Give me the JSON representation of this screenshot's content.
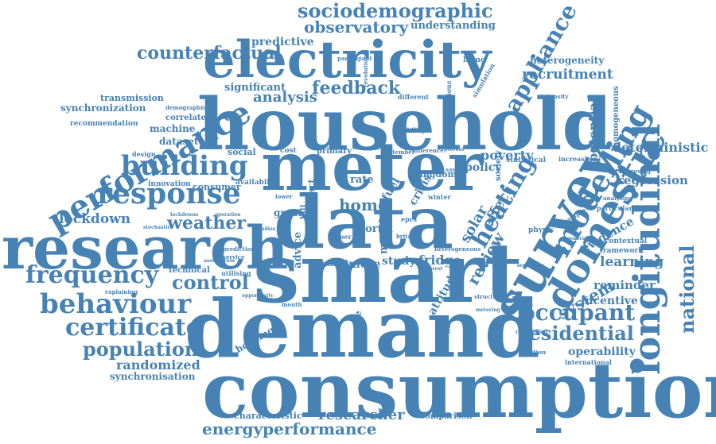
{
  "word_color": "#4682b4",
  "words": [
    "consumption",
    "demand",
    "smart",
    "data",
    "household",
    "research",
    "meter",
    "electricity",
    "survey",
    "domestic",
    "longitudinal",
    "modelling",
    "performance",
    "response",
    "building",
    "behaviour",
    "frequency",
    "certificate",
    "population",
    "control",
    "sociodemographic",
    "appliance",
    "occupant",
    "residential",
    "temperature",
    "feedback",
    "heating",
    "observatory",
    "energyperformance",
    "researcher",
    "randomized",
    "synchronisation",
    "weather",
    "lockdown",
    "counterfactual",
    "recruitment",
    "heterogeneity",
    "deterministic",
    "regression",
    "learning",
    "reminder",
    "incentive",
    "operability",
    "analysis",
    "national",
    "significant",
    "predictive",
    "understanding",
    "home",
    "solar",
    "fridge",
    "study",
    "more",
    "mixed",
    "great",
    "poverty",
    "policy",
    "review",
    "effect",
    "system",
    "evidence",
    "potential",
    "homogeneous",
    "transmission",
    "synchronization",
    "recommendation",
    "correlated",
    "machine",
    "dataset",
    "innovation",
    "consumer",
    "technical",
    "characteristic",
    "comparison",
    "international",
    "reduction",
    "controlled",
    "framework",
    "contextual",
    "physic",
    "particular",
    "analysing",
    "countrie",
    "housing",
    "attitude",
    "advice",
    "portal",
    "fuel",
    "crisis",
    "rate",
    "cost",
    "primary",
    "social",
    "impact",
    "design",
    "living",
    "participant",
    "demographic",
    "champion",
    "statistical",
    "increasing",
    "improving",
    "stability",
    "difference",
    "heterogeneous",
    "britain",
    "kingdom",
    "winter",
    "epcs",
    "paper",
    "model",
    "future",
    "acc",
    "self",
    "bill",
    "change",
    "utilising",
    "service",
    "prediction",
    "explaining",
    "previous",
    "simulation",
    "intensity",
    "revolution",
    "different",
    "september",
    "prevent",
    "saving",
    "society",
    "sample",
    "generation",
    "sensitivity",
    "laboratory",
    "structure",
    "metering",
    "mouth",
    "reduce",
    "interest",
    "greater",
    "availability",
    "stochastic",
    "assumption",
    "lockdowns",
    "operation",
    "opportunity",
    "bottom",
    "studies",
    "lower",
    "heat",
    "finding",
    "trial",
    "modelled",
    "physical",
    "sensible",
    "structure"
  ]
}
